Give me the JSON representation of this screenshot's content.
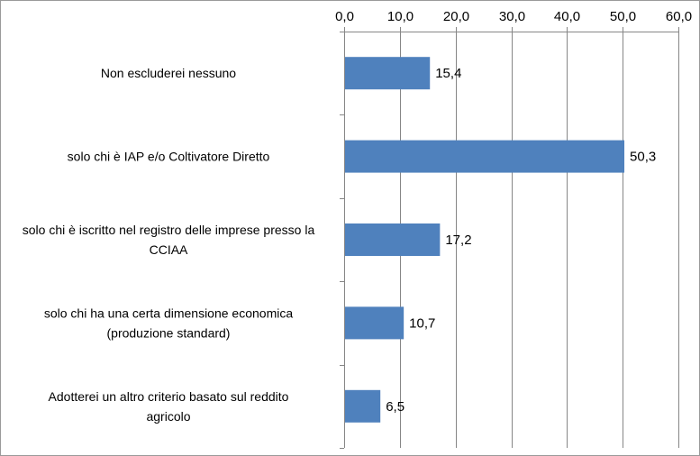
{
  "chart_data": {
    "type": "bar",
    "orientation": "horizontal",
    "categories": [
      [
        "Non escluderei nessuno"
      ],
      [
        "solo chi è IAP e/o Coltivatore Diretto"
      ],
      [
        "solo chi è iscritto nel registro delle imprese presso la",
        "CCIAA"
      ],
      [
        "solo chi ha una certa dimensione economica",
        "(produzione standard)"
      ],
      [
        "Adotterei un altro criterio basato sul reddito",
        "agricolo"
      ]
    ],
    "values": [
      15.4,
      50.3,
      17.2,
      10.7,
      6.5
    ],
    "value_labels": [
      "15,4",
      "50,3",
      "17,2",
      "10,7",
      "6,5"
    ],
    "xlim": [
      0,
      60
    ],
    "ticks": [
      0,
      10,
      20,
      30,
      40,
      50,
      60
    ],
    "tick_labels": [
      "0,0",
      "10,0",
      "20,0",
      "30,0",
      "40,0",
      "50,0",
      "60,0"
    ],
    "axis_position": "top",
    "gridlines": "vertical",
    "legend": "none",
    "bar_color": "#4f81bd",
    "gridline_color": "#868686",
    "axis_color": "#868686"
  }
}
